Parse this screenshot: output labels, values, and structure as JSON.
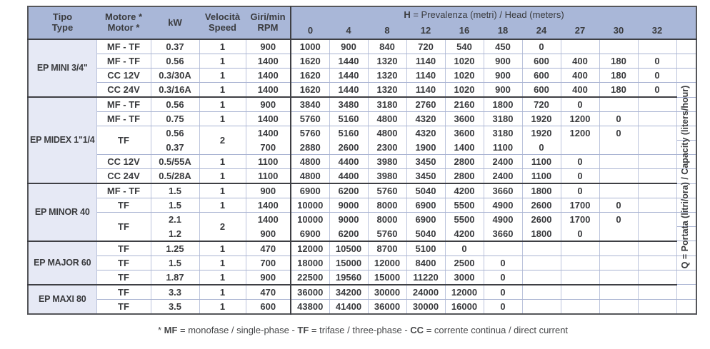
{
  "header": {
    "tipo": {
      "l1": "Tipo",
      "l2": "Type"
    },
    "motor": {
      "l1": "Motore *",
      "l2": "Motor *"
    },
    "kw": {
      "l1": "kW"
    },
    "speed": {
      "l1": "Velocità",
      "l2": "Speed"
    },
    "rpm": {
      "l1": "Giri/min",
      "l2": "RPM"
    },
    "h_title": {
      "bold": "H",
      "rest": " = Prevalenza (metri) / Head (meters)"
    },
    "heads": [
      "0",
      "4",
      "8",
      "12",
      "16",
      "18",
      "24",
      "27",
      "30",
      "32"
    ]
  },
  "q_label": {
    "bold": "Q",
    "rest": " = Portata (litri/ora) / Capacity (liters/hour)"
  },
  "footnote": {
    "star": "* ",
    "mf": "MF",
    "mf_rest": " = monofase / single-phase - ",
    "tf": "TF",
    "tf_rest": " = trifase / three-phase - ",
    "cc": "CC",
    "cc_rest": " = corrente continua / direct current"
  },
  "colors": {
    "header_blue": "#a9b7d8",
    "group_lavender": "#e6e9f5",
    "grid_light": "#a9b3d2",
    "grid_dark": "#3e3f44",
    "outer_border": "#55565a"
  },
  "groups": [
    {
      "name": "EP MINI 3/4\"",
      "rows": [
        {
          "motor": "MF - TF",
          "kw": "0.37",
          "speed": "1",
          "rpm": "900",
          "q": [
            "1000",
            "900",
            "840",
            "720",
            "540",
            "450",
            "0",
            "",
            "",
            ""
          ]
        },
        {
          "motor": "MF - TF",
          "kw": "0.56",
          "speed": "1",
          "rpm": "1400",
          "q": [
            "1620",
            "1440",
            "1320",
            "1140",
            "1020",
            "900",
            "600",
            "400",
            "180",
            "0"
          ]
        },
        {
          "motor": "CC 12V",
          "kw": "0.3/30A",
          "speed": "1",
          "rpm": "1400",
          "q": [
            "1620",
            "1440",
            "1320",
            "1140",
            "1020",
            "900",
            "600",
            "400",
            "180",
            "0"
          ]
        },
        {
          "motor": "CC 24V",
          "kw": "0.3/16A",
          "speed": "1",
          "rpm": "1400",
          "q": [
            "1620",
            "1440",
            "1320",
            "1140",
            "1020",
            "900",
            "600",
            "400",
            "180",
            "0"
          ]
        }
      ]
    },
    {
      "name": "EP MIDEX 1\"1/4",
      "rows": [
        {
          "motor": "MF - TF",
          "kw": "0.56",
          "speed": "1",
          "rpm": "900",
          "q": [
            "3840",
            "3480",
            "3180",
            "2760",
            "2160",
            "1800",
            "720",
            "0",
            "",
            ""
          ]
        },
        {
          "motor": "MF - TF",
          "kw": "0.75",
          "speed": "1",
          "rpm": "1400",
          "q": [
            "5760",
            "5160",
            "4800",
            "4320",
            "3600",
            "3180",
            "1920",
            "1200",
            "0",
            ""
          ]
        },
        {
          "motor": "TF",
          "speed": "2",
          "sub": [
            {
              "kw": "0.56",
              "rpm": "1400",
              "q": [
                "5760",
                "5160",
                "4800",
                "4320",
                "3600",
                "3180",
                "1920",
                "1200",
                "0",
                ""
              ]
            },
            {
              "kw": "0.37",
              "rpm": "700",
              "q": [
                "2880",
                "2600",
                "2300",
                "1900",
                "1400",
                "1100",
                "0",
                "",
                "",
                ""
              ]
            }
          ]
        },
        {
          "motor": "CC 12V",
          "kw": "0.5/55A",
          "speed": "1",
          "rpm": "1100",
          "q": [
            "4800",
            "4400",
            "3980",
            "3450",
            "2800",
            "2400",
            "1100",
            "0",
            "",
            ""
          ]
        },
        {
          "motor": "CC 24V",
          "kw": "0.5/28A",
          "speed": "1",
          "rpm": "1100",
          "q": [
            "4800",
            "4400",
            "3980",
            "3450",
            "2800",
            "2400",
            "1100",
            "0",
            "",
            ""
          ]
        }
      ]
    },
    {
      "name": "EP MINOR 40",
      "rows": [
        {
          "motor": "MF - TF",
          "kw": "1.5",
          "speed": "1",
          "rpm": "900",
          "q": [
            "6900",
            "6200",
            "5760",
            "5040",
            "4200",
            "3660",
            "1800",
            "0",
            "",
            ""
          ]
        },
        {
          "motor": "TF",
          "kw": "1.5",
          "speed": "1",
          "rpm": "1400",
          "q": [
            "10000",
            "9000",
            "8000",
            "6900",
            "5500",
            "4900",
            "2600",
            "1700",
            "0",
            ""
          ]
        },
        {
          "motor": "TF",
          "speed": "2",
          "sub": [
            {
              "kw": "2.1",
              "rpm": "1400",
              "q": [
                "10000",
                "9000",
                "8000",
                "6900",
                "5500",
                "4900",
                "2600",
                "1700",
                "0",
                ""
              ]
            },
            {
              "kw": "1.2",
              "rpm": "900",
              "q": [
                "6900",
                "6200",
                "5760",
                "5040",
                "4200",
                "3660",
                "1800",
                "0",
                "",
                ""
              ]
            }
          ]
        }
      ]
    },
    {
      "name": "EP MAJOR 60",
      "rows": [
        {
          "motor": "TF",
          "kw": "1.25",
          "speed": "1",
          "rpm": "470",
          "q": [
            "12000",
            "10500",
            "8700",
            "5100",
            "0",
            "",
            "",
            "",
            "",
            ""
          ]
        },
        {
          "motor": "TF",
          "kw": "1.5",
          "speed": "1",
          "rpm": "700",
          "q": [
            "18000",
            "15000",
            "12000",
            "8400",
            "2500",
            "0",
            "",
            "",
            "",
            ""
          ]
        },
        {
          "motor": "TF",
          "kw": "1.87",
          "speed": "1",
          "rpm": "900",
          "q": [
            "22500",
            "19560",
            "15000",
            "11220",
            "3000",
            "0",
            "",
            "",
            "",
            ""
          ]
        }
      ]
    },
    {
      "name": "EP MAXI 80",
      "rows": [
        {
          "motor": "TF",
          "kw": "3.3",
          "speed": "1",
          "rpm": "470",
          "q": [
            "36000",
            "34200",
            "30000",
            "24000",
            "12000",
            "0",
            "",
            "",
            "",
            ""
          ]
        },
        {
          "motor": "TF",
          "kw": "3.5",
          "speed": "1",
          "rpm": "600",
          "q": [
            "43800",
            "41400",
            "36000",
            "30000",
            "16000",
            "0",
            "",
            "",
            "",
            ""
          ]
        }
      ]
    }
  ]
}
